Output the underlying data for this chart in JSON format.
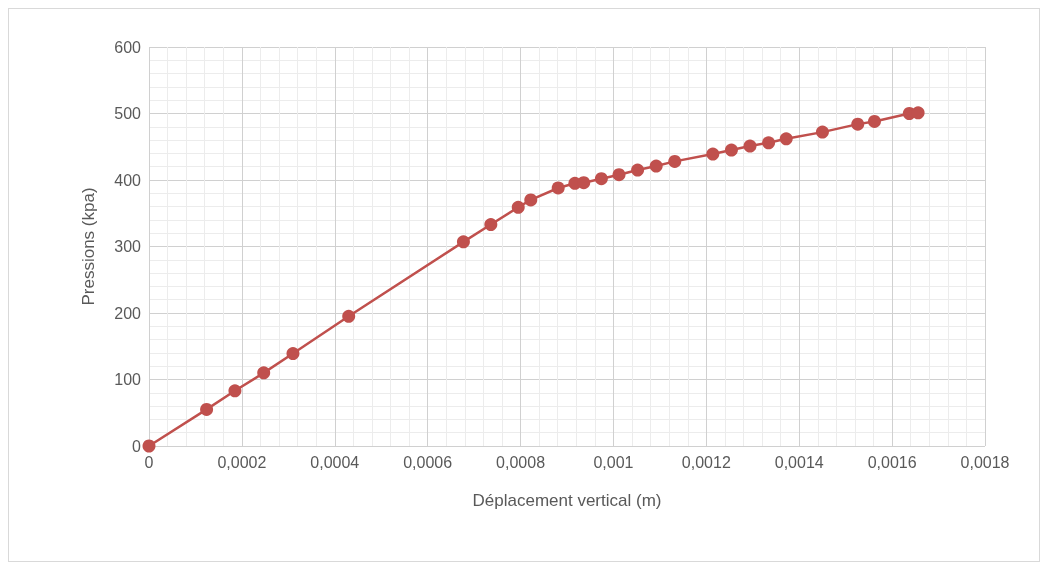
{
  "chart_data": {
    "type": "line",
    "xlabel": "Déplacement vertical (m)",
    "ylabel": "Pressions (kpa)",
    "xlim": [
      0,
      0.0018
    ],
    "xticks": [
      0,
      {
        "value": 0.0002,
        "label": "0,0002"
      },
      {
        "value": 0.0004,
        "label": "0,0004"
      },
      {
        "value": 0.0006,
        "label": "0,0006"
      },
      {
        "value": 0.0008,
        "label": "0,0008"
      },
      {
        "value": 0.001,
        "label": "0,001"
      },
      {
        "value": 0.0012,
        "label": "0,0012"
      },
      {
        "value": 0.0014,
        "label": "0,0014"
      },
      {
        "value": 0.0016,
        "label": "0,0016"
      },
      {
        "value": 0.0018,
        "label": "0,0018"
      }
    ],
    "ylim": [
      0,
      600
    ],
    "yticks": [
      0,
      100,
      200,
      300,
      400,
      500,
      600
    ],
    "grid": true,
    "marker": "circle",
    "line_style": "solid",
    "series": [
      {
        "color": "#c0504d",
        "x": [
          0,
          0.000124,
          0.000185,
          0.000247,
          0.00031,
          0.00043,
          0.000677,
          0.000736,
          0.000795,
          0.000822,
          0.000881,
          0.000917,
          0.000936,
          0.000974,
          0.001012,
          0.001052,
          0.001092,
          0.001132,
          0.001214,
          0.001254,
          0.001294,
          0.001334,
          0.001372,
          0.00145,
          0.001526,
          0.001562,
          0.001637,
          0.001656
        ],
        "values": [
          0,
          55,
          83,
          110,
          139,
          195,
          307,
          333,
          359,
          370,
          388,
          395,
          396,
          402,
          408,
          415,
          421,
          428,
          439,
          445,
          451,
          456,
          462,
          472,
          484,
          488,
          500,
          501
        ]
      }
    ]
  }
}
